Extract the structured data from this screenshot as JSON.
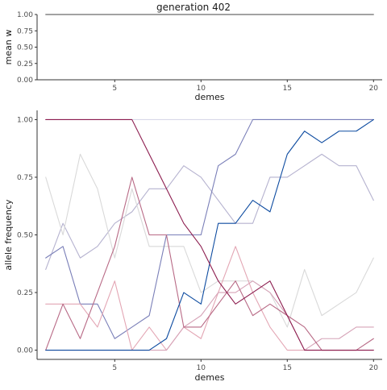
{
  "title": "generation 402",
  "chart_data": [
    {
      "type": "line",
      "id": "top",
      "xlabel": "demes",
      "ylabel": "mean w",
      "xlim": [
        0.5,
        20.5
      ],
      "ylim": [
        0,
        1
      ],
      "xticks": [
        5,
        10,
        15,
        20
      ],
      "xtick_labels": [
        "5",
        "10",
        "15",
        "20"
      ],
      "yticks": [
        0,
        0.25,
        0.5,
        0.75,
        1.0
      ],
      "ytick_labels": [
        "0.00",
        "0.25",
        "0.50",
        "0.75",
        "1.00"
      ],
      "grid": false,
      "series": [
        {
          "color": "#444444",
          "x": [
            1,
            2,
            3,
            4,
            5,
            6,
            7,
            8,
            9,
            10,
            11,
            12,
            13,
            14,
            15,
            16,
            17,
            18,
            19,
            20
          ],
          "values": [
            1,
            1,
            1,
            1,
            1,
            1,
            1,
            1,
            1,
            1,
            1,
            1,
            1,
            1,
            1,
            1,
            1,
            1,
            1,
            1
          ]
        }
      ]
    },
    {
      "type": "line",
      "id": "bottom",
      "xlabel": "demes",
      "ylabel": "allele frequency",
      "xlim": [
        0.5,
        20.5
      ],
      "ylim": [
        -0.04,
        1.04
      ],
      "xticks": [
        5,
        10,
        15,
        20
      ],
      "xtick_labels": [
        "5",
        "10",
        "15",
        "20"
      ],
      "yticks": [
        0,
        0.25,
        0.5,
        0.75,
        1.0
      ],
      "ytick_labels": [
        "0.00",
        "0.25",
        "0.50",
        "0.75",
        "1.00"
      ],
      "grid": false,
      "series": [
        {
          "color": "#d8d8e8",
          "x": [
            1,
            20
          ],
          "values": [
            1.0,
            1.0
          ]
        },
        {
          "color": "#b5b2cf",
          "x": [
            1,
            2,
            3,
            4,
            5,
            6,
            7,
            8,
            9,
            10,
            11,
            12,
            13,
            14,
            15,
            16,
            17,
            18,
            19,
            20
          ],
          "values": [
            0.35,
            0.55,
            0.4,
            0.45,
            0.55,
            0.6,
            0.7,
            0.7,
            0.8,
            0.75,
            0.65,
            0.55,
            0.55,
            0.75,
            0.75,
            0.8,
            0.85,
            0.8,
            0.8,
            0.65
          ]
        },
        {
          "color": "#d9d9d9",
          "x": [
            1,
            2,
            3,
            4,
            5,
            6,
            7,
            8,
            9,
            10,
            11,
            12,
            13,
            14,
            15,
            16,
            17,
            18,
            19,
            20
          ],
          "values": [
            0.75,
            0.5,
            0.85,
            0.7,
            0.4,
            0.7,
            0.45,
            0.45,
            0.45,
            0.25,
            0.3,
            0.3,
            0.3,
            0.25,
            0.1,
            0.35,
            0.15,
            0.2,
            0.25,
            0.4
          ]
        },
        {
          "color": "#7a7fb8",
          "x": [
            1,
            2,
            3,
            4,
            5,
            6,
            7,
            8,
            9,
            10,
            11,
            12,
            13,
            14,
            15,
            16,
            17,
            18,
            19,
            20
          ],
          "values": [
            0.4,
            0.45,
            0.2,
            0.2,
            0.05,
            0.1,
            0.15,
            0.5,
            0.5,
            0.5,
            0.8,
            0.85,
            1.0,
            1.0,
            1.0,
            1.0,
            1.0,
            1.0,
            1.0,
            1.0
          ]
        },
        {
          "color": "#e3a6b4",
          "x": [
            1,
            2,
            3,
            4,
            5,
            6,
            7,
            8,
            9,
            10,
            11,
            12,
            13,
            14,
            15,
            16,
            17,
            18,
            19,
            20
          ],
          "values": [
            0.2,
            0.2,
            0.2,
            0.1,
            0.3,
            0.0,
            0.1,
            0.0,
            0.1,
            0.05,
            0.25,
            0.45,
            0.25,
            0.1,
            0.0,
            0.0,
            0.0,
            0.0,
            0.0,
            0.0
          ]
        },
        {
          "color": "#d6a3b7",
          "x": [
            1,
            2,
            3,
            4,
            5,
            6,
            7,
            8,
            9,
            10,
            11,
            12,
            13,
            14,
            15,
            16,
            17,
            18,
            19,
            20
          ],
          "values": [
            0.0,
            0.0,
            0.0,
            0.0,
            0.0,
            0.0,
            0.0,
            0.0,
            0.1,
            0.15,
            0.25,
            0.25,
            0.3,
            0.25,
            0.15,
            0.0,
            0.05,
            0.05,
            0.1,
            0.1
          ]
        },
        {
          "color": "#b86a86",
          "x": [
            1,
            2,
            3,
            4,
            5,
            6,
            7,
            8,
            9,
            10,
            11,
            12,
            13,
            14,
            15,
            16,
            17,
            18,
            19,
            20
          ],
          "values": [
            0.0,
            0.2,
            0.05,
            0.25,
            0.45,
            0.75,
            0.5,
            0.5,
            0.1,
            0.1,
            0.2,
            0.3,
            0.15,
            0.2,
            0.15,
            0.1,
            0.0,
            0.0,
            0.0,
            0.05
          ]
        },
        {
          "color": "#0d4ba0",
          "x": [
            1,
            2,
            3,
            4,
            5,
            6,
            7,
            8,
            9,
            10,
            11,
            12,
            13,
            14,
            15,
            16,
            17,
            18,
            19,
            20
          ],
          "values": [
            0.0,
            0.0,
            0.0,
            0.0,
            0.0,
            0.0,
            0.0,
            0.05,
            0.25,
            0.2,
            0.55,
            0.55,
            0.65,
            0.6,
            0.85,
            0.95,
            0.9,
            0.95,
            0.95,
            1.0
          ]
        },
        {
          "color": "#8c1c4e",
          "x": [
            1,
            2,
            3,
            4,
            5,
            6,
            7,
            8,
            9,
            10,
            11,
            12,
            13,
            14,
            15,
            16,
            17,
            18,
            19,
            20
          ],
          "values": [
            1.0,
            1.0,
            1.0,
            1.0,
            1.0,
            1.0,
            0.85,
            0.7,
            0.55,
            0.45,
            0.3,
            0.2,
            0.25,
            0.3,
            0.15,
            0.0,
            0.0,
            0.0,
            0.0,
            0.0
          ]
        }
      ]
    }
  ]
}
